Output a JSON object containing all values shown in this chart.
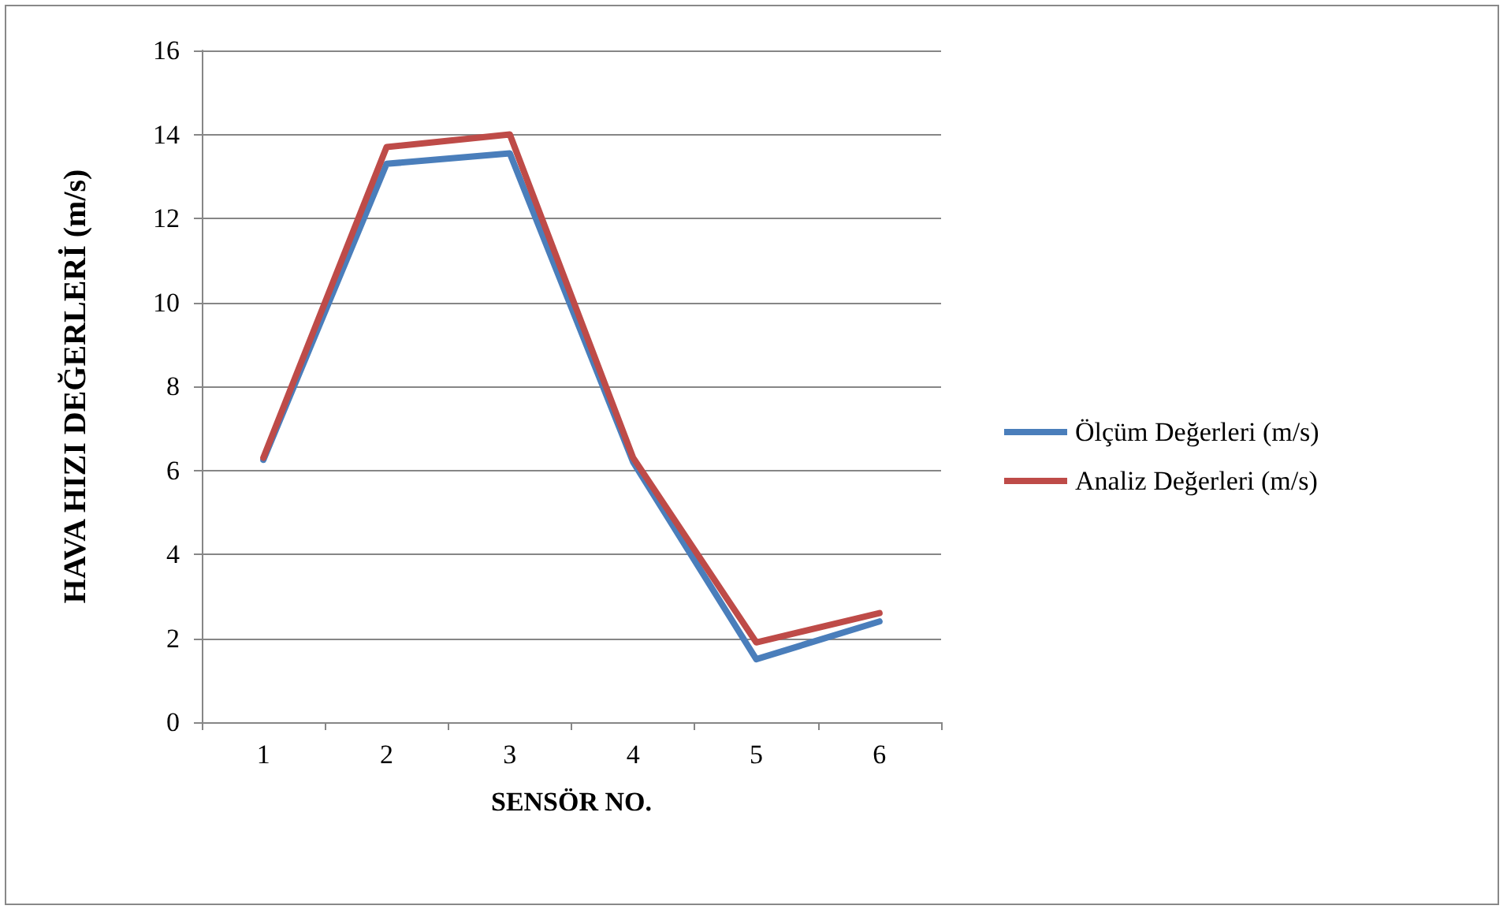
{
  "chart_data": {
    "type": "line",
    "xlabel": "SENSÖR NO.",
    "ylabel": "HAVA HIZI DEĞERLERİ (m/s)",
    "categories": [
      "1",
      "2",
      "3",
      "4",
      "5",
      "6"
    ],
    "series": [
      {
        "name": "Ölçüm Değerleri (m/s)",
        "color": "#4a7ebb",
        "values": [
          6.25,
          13.3,
          13.55,
          6.2,
          1.5,
          2.4
        ]
      },
      {
        "name": "Analiz Değerleri (m/s)",
        "color": "#be4b48",
        "values": [
          6.3,
          13.7,
          14.0,
          6.3,
          1.9,
          2.6
        ]
      }
    ],
    "ylim": [
      0,
      16
    ],
    "yticks": [
      0,
      2,
      4,
      6,
      8,
      10,
      12,
      14,
      16
    ],
    "grid": "y",
    "legend": "right",
    "marker": "none",
    "line_style": "solid"
  }
}
